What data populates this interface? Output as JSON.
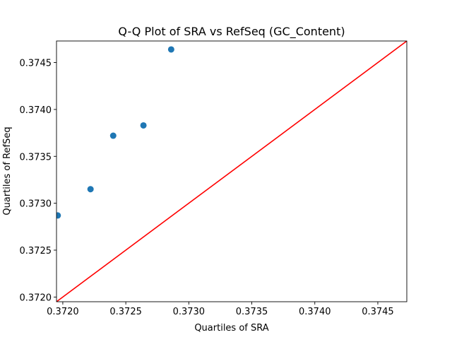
{
  "chart_data": {
    "type": "scatter",
    "title": "Q-Q Plot of SRA vs RefSeq (GC_Content)",
    "xlabel": "Quartiles of SRA",
    "ylabel": "Quartiles of RefSeq",
    "xlim": [
      0.37195,
      0.37473
    ],
    "ylim": [
      0.37195,
      0.37473
    ],
    "xticks": [
      0.372,
      0.3725,
      0.373,
      0.3735,
      0.374,
      0.3745
    ],
    "yticks": [
      0.372,
      0.3725,
      0.373,
      0.3735,
      0.374,
      0.3745
    ],
    "xtick_labels": [
      "0.3720",
      "0.3725",
      "0.3730",
      "0.3735",
      "0.3740",
      "0.3745"
    ],
    "ytick_labels": [
      "0.3720",
      "0.3725",
      "0.3730",
      "0.3735",
      "0.3740",
      "0.3745"
    ],
    "grid": false,
    "points": [
      {
        "x": 0.37196,
        "y": 0.37287
      },
      {
        "x": 0.37222,
        "y": 0.37315
      },
      {
        "x": 0.3724,
        "y": 0.37372
      },
      {
        "x": 0.37264,
        "y": 0.37383
      },
      {
        "x": 0.37286,
        "y": 0.37464
      }
    ],
    "reference_line": {
      "x": [
        0.37195,
        0.37473
      ],
      "y": [
        0.37195,
        0.37473
      ]
    },
    "colors": {
      "points": "#1f77b4",
      "reference_line": "#ff0000"
    }
  }
}
